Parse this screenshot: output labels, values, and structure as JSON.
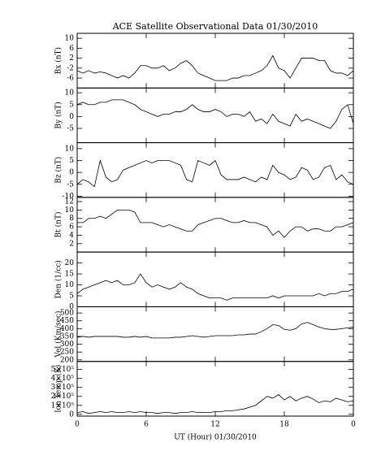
{
  "chart_data": [
    {
      "type": "line",
      "title": "ACE Satellite Observational Data   01/30/2010",
      "y_label": "Bx (nT)",
      "color": "#000000",
      "x": [
        0,
        0.5,
        1,
        1.5,
        2,
        2.5,
        3,
        3.5,
        4,
        4.5,
        5,
        5.5,
        6,
        6.5,
        7,
        7.5,
        8,
        8.5,
        9,
        9.5,
        10,
        10.5,
        11,
        11.5,
        12,
        12.5,
        13,
        13.5,
        14,
        14.5,
        15,
        15.5,
        16,
        16.5,
        17,
        17.5,
        18,
        18.5,
        19,
        19.5,
        20,
        20.5,
        21,
        21.5,
        22,
        22.5,
        23,
        23.5,
        24
      ],
      "values": [
        -3,
        -4,
        -3,
        -4,
        -3.5,
        -4,
        -5,
        -6,
        -5,
        -6,
        -4,
        -1,
        -1,
        -2,
        -2,
        -1,
        -3,
        -2,
        0,
        1,
        -1,
        -4,
        -5,
        -6,
        -7,
        -7,
        -7,
        -6,
        -6,
        -5,
        -5,
        -4,
        -3,
        -1,
        3,
        -2,
        -3,
        -6,
        -2,
        2,
        2,
        2,
        1,
        1,
        -3,
        -4,
        -4,
        -5,
        -3
      ],
      "xlim": [
        0,
        24
      ],
      "xticks": [
        0,
        6,
        12,
        18,
        24
      ],
      "ylim": [
        -10,
        12
      ],
      "yticks": [
        -6,
        -2,
        2,
        6,
        10
      ]
    },
    {
      "type": "line",
      "y_label": "By (nT)",
      "color": "#000000",
      "x": [
        0,
        0.5,
        1,
        1.5,
        2,
        2.5,
        3,
        3.5,
        4,
        4.5,
        5,
        5.5,
        6,
        6.5,
        7,
        7.5,
        8,
        8.5,
        9,
        9.5,
        10,
        10.5,
        11,
        11.5,
        12,
        12.5,
        13,
        13.5,
        14,
        14.5,
        15,
        15.5,
        16,
        16.5,
        17,
        17.5,
        18,
        18.5,
        19,
        19.5,
        20,
        20.5,
        21,
        21.5,
        22,
        22.5,
        23,
        23.5,
        24
      ],
      "values": [
        5,
        6,
        5,
        5,
        6,
        6,
        7,
        7,
        7,
        6,
        5,
        3,
        2,
        1,
        0,
        1,
        1,
        2,
        2,
        3,
        5,
        3,
        2,
        2,
        3,
        2,
        0,
        1,
        1,
        0,
        2,
        -2,
        -1,
        -3,
        1,
        -2,
        -3,
        -4,
        1,
        -2,
        -1,
        -2,
        -3,
        -4,
        -5,
        -2,
        3,
        5,
        -3
      ],
      "xlim": [
        0,
        24
      ],
      "xticks": [
        0,
        6,
        12,
        18,
        24
      ],
      "ylim": [
        -11,
        12
      ],
      "yticks": [
        -5,
        0,
        5,
        10
      ]
    },
    {
      "type": "line",
      "y_label": "Bz (nT)",
      "color": "#000000",
      "x": [
        0,
        0.5,
        1,
        1.5,
        2,
        2.5,
        3,
        3.5,
        4,
        4.5,
        5,
        5.5,
        6,
        6.5,
        7,
        7.5,
        8,
        8.5,
        9,
        9.5,
        10,
        10.5,
        11,
        11.5,
        12,
        12.5,
        13,
        13.5,
        14,
        14.5,
        15,
        15.5,
        16,
        16.5,
        17,
        17.5,
        18,
        18.5,
        19,
        19.5,
        20,
        20.5,
        21,
        21.5,
        22,
        22.5,
        23,
        23.5,
        24
      ],
      "values": [
        -5,
        -3,
        -4,
        -6,
        5,
        -2,
        -4,
        -3,
        1,
        2,
        3,
        4,
        5,
        4,
        5,
        5,
        5,
        4,
        3,
        -3,
        -4,
        5,
        4,
        3,
        5,
        -1,
        -3,
        -3,
        -3,
        -2,
        -3,
        -4,
        -2,
        -3,
        3,
        0,
        -1,
        -3,
        -2,
        2,
        1,
        -3,
        -2,
        2,
        3,
        -3,
        -1,
        -4,
        -5
      ],
      "xlim": [
        0,
        24
      ],
      "xticks": [
        0,
        6,
        12,
        18,
        24
      ],
      "ylim": [
        -10.5,
        12.5
      ],
      "yticks": [
        -10,
        -5,
        0,
        5,
        10
      ]
    },
    {
      "type": "line",
      "y_label": "Bt (nT)",
      "color": "#000000",
      "x": [
        0,
        0.5,
        1,
        1.5,
        2,
        2.5,
        3,
        3.5,
        4,
        4.5,
        5,
        5.5,
        6,
        6.5,
        7,
        7.5,
        8,
        8.5,
        9,
        9.5,
        10,
        10.5,
        11,
        11.5,
        12,
        12.5,
        13,
        13.5,
        14,
        14.5,
        15,
        15.5,
        16,
        16.5,
        17,
        17.5,
        18,
        18.5,
        19,
        19.5,
        20,
        20.5,
        21,
        21.5,
        22,
        22.5,
        23,
        23.5,
        24
      ],
      "values": [
        7,
        7,
        8,
        8,
        8.5,
        8,
        9,
        10,
        10,
        10,
        9.5,
        7,
        7,
        7,
        6.5,
        6,
        6.5,
        6,
        5.5,
        5,
        5,
        6.5,
        7,
        7.5,
        8,
        8,
        7.5,
        7,
        7,
        7.5,
        7,
        7,
        6.5,
        6,
        4,
        5,
        3.5,
        5,
        6,
        6,
        5,
        5.5,
        5.5,
        5,
        5,
        6,
        6,
        6.5,
        7
      ],
      "xlim": [
        0,
        24
      ],
      "xticks": [
        0,
        6,
        12,
        18,
        24
      ],
      "ylim": [
        0,
        13
      ],
      "yticks": [
        2,
        4,
        6,
        8,
        10,
        12
      ]
    },
    {
      "type": "line",
      "y_label": "Den (1/cc)",
      "color": "#000000",
      "x": [
        0,
        0.5,
        1,
        1.5,
        2,
        2.5,
        3,
        3.5,
        4,
        4.5,
        5,
        5.5,
        6,
        6.5,
        7,
        7.5,
        8,
        8.5,
        9,
        9.5,
        10,
        10.5,
        11,
        11.5,
        12,
        12.5,
        13,
        13.5,
        14,
        14.5,
        15,
        15.5,
        16,
        16.5,
        17,
        17.5,
        18,
        18.5,
        19,
        19.5,
        20,
        20.5,
        21,
        21.5,
        22,
        22.5,
        23,
        23.5,
        24
      ],
      "values": [
        6,
        8,
        9,
        10,
        11,
        12,
        11,
        12,
        10,
        10,
        11,
        15,
        11,
        9,
        10,
        9,
        8,
        9,
        11,
        9,
        8,
        6,
        5,
        4,
        4,
        4,
        3,
        4,
        4,
        4,
        4,
        4,
        4,
        4,
        5,
        4,
        5,
        5,
        5,
        5,
        5,
        5,
        6,
        5,
        6,
        6,
        7,
        7,
        8
      ],
      "xlim": [
        0,
        24
      ],
      "xticks": [
        0,
        6,
        12,
        18,
        24
      ],
      "ylim": [
        0,
        25
      ],
      "yticks": [
        0,
        5,
        10,
        15,
        20
      ]
    },
    {
      "type": "line",
      "y_label": "Vel (Km/sec)",
      "color": "#000000",
      "x": [
        0,
        0.5,
        1,
        1.5,
        2,
        2.5,
        3,
        3.5,
        4,
        4.5,
        5,
        5.5,
        6,
        6.5,
        7,
        7.5,
        8,
        8.5,
        9,
        9.5,
        10,
        10.5,
        11,
        11.5,
        12,
        12.5,
        13,
        13.5,
        14,
        14.5,
        15,
        15.5,
        16,
        16.5,
        17,
        17.5,
        18,
        18.5,
        19,
        19.5,
        20,
        20.5,
        21,
        21.5,
        22,
        22.5,
        23,
        23.5,
        24
      ],
      "values": [
        345,
        350,
        345,
        350,
        350,
        350,
        350,
        350,
        345,
        345,
        350,
        345,
        350,
        340,
        340,
        340,
        340,
        345,
        345,
        350,
        355,
        350,
        345,
        350,
        355,
        355,
        355,
        355,
        360,
        360,
        365,
        365,
        380,
        400,
        425,
        420,
        395,
        390,
        400,
        430,
        440,
        425,
        410,
        400,
        395,
        395,
        400,
        405,
        410
      ],
      "xlim": [
        0,
        24
      ],
      "xticks": [
        0,
        6,
        12,
        18,
        24
      ],
      "ylim": [
        190,
        540
      ],
      "yticks": [
        200,
        250,
        300,
        350,
        400,
        450,
        500
      ]
    },
    {
      "type": "line",
      "y_label": "Ion Temp (K)",
      "x_label": "UT (Hour)   01/30/2010",
      "color": "#000000",
      "x": [
        0,
        0.5,
        1,
        1.5,
        2,
        2.5,
        3,
        3.5,
        4,
        4.5,
        5,
        5.5,
        6,
        6.5,
        7,
        7.5,
        8,
        8.5,
        9,
        9.5,
        10,
        10.5,
        11,
        11.5,
        12,
        12.5,
        13,
        13.5,
        14,
        14.5,
        15,
        15.5,
        16,
        16.5,
        17,
        17.5,
        18,
        18.5,
        19,
        19.5,
        20,
        20.5,
        21,
        21.5,
        22,
        22.5,
        23,
        23.5,
        24
      ],
      "values": [
        20000,
        30000,
        10000,
        20000,
        30000,
        20000,
        30000,
        20000,
        20000,
        30000,
        20000,
        30000,
        20000,
        20000,
        10000,
        20000,
        20000,
        10000,
        20000,
        20000,
        30000,
        20000,
        20000,
        20000,
        30000,
        30000,
        40000,
        40000,
        50000,
        60000,
        80000,
        100000,
        150000,
        200000,
        180000,
        220000,
        160000,
        200000,
        150000,
        180000,
        200000,
        170000,
        130000,
        150000,
        140000,
        180000,
        160000,
        140000,
        150000
      ],
      "xlim": [
        0,
        24
      ],
      "xticks": [
        0,
        6,
        12,
        18,
        {
          "value": 24,
          "label": "0"
        }
      ],
      "ylim": [
        -20000,
        590000
      ],
      "yticks": [
        0,
        {
          "value": 100000,
          "label": "1×10⁵"
        },
        {
          "value": 200000,
          "label": "2×10⁵"
        },
        {
          "value": 300000,
          "label": "3×10⁵"
        },
        {
          "value": 400000,
          "label": "4×10⁵"
        },
        {
          "value": 500000,
          "label": "5×10⁵"
        }
      ]
    }
  ]
}
